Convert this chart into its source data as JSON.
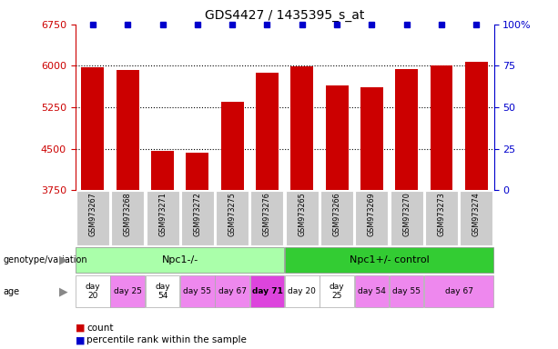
{
  "title": "GDS4427 / 1435395_s_at",
  "samples": [
    "GSM973267",
    "GSM973268",
    "GSM973271",
    "GSM973272",
    "GSM973275",
    "GSM973276",
    "GSM973265",
    "GSM973266",
    "GSM973269",
    "GSM973270",
    "GSM973273",
    "GSM973274"
  ],
  "counts": [
    5980,
    5930,
    4460,
    4430,
    5350,
    5870,
    5990,
    5640,
    5610,
    5940,
    6000,
    6080
  ],
  "percentiles": [
    100,
    100,
    100,
    100,
    100,
    100,
    100,
    100,
    100,
    100,
    100,
    100
  ],
  "ylim_left": [
    3750,
    6750
  ],
  "ylim_right": [
    0,
    100
  ],
  "yticks_left": [
    3750,
    4500,
    5250,
    6000,
    6750
  ],
  "yticks_right": [
    0,
    25,
    50,
    75,
    100
  ],
  "bar_color": "#cc0000",
  "percentile_color": "#0000cc",
  "sample_bg_color": "#cccccc",
  "genotype_groups": [
    {
      "label": "Npc1-/-",
      "start": 0,
      "end": 6,
      "color": "#aaffaa"
    },
    {
      "label": "Npc1+/- control",
      "start": 6,
      "end": 12,
      "color": "#33cc33"
    }
  ],
  "age_spans": [
    {
      "label": "day\n20",
      "start": 0,
      "end": 1,
      "color": "#ffffff",
      "bold": false
    },
    {
      "label": "day 25",
      "start": 1,
      "end": 2,
      "color": "#ee88ee",
      "bold": false
    },
    {
      "label": "day\n54",
      "start": 2,
      "end": 3,
      "color": "#ffffff",
      "bold": false
    },
    {
      "label": "day 55",
      "start": 3,
      "end": 4,
      "color": "#ee88ee",
      "bold": false
    },
    {
      "label": "day 67",
      "start": 4,
      "end": 5,
      "color": "#ee88ee",
      "bold": false
    },
    {
      "label": "day 71",
      "start": 5,
      "end": 6,
      "color": "#dd44dd",
      "bold": true
    },
    {
      "label": "day 20",
      "start": 6,
      "end": 7,
      "color": "#ffffff",
      "bold": false
    },
    {
      "label": "day\n25",
      "start": 7,
      "end": 8,
      "color": "#ffffff",
      "bold": false
    },
    {
      "label": "day 54",
      "start": 8,
      "end": 9,
      "color": "#ee88ee",
      "bold": false
    },
    {
      "label": "day 55",
      "start": 9,
      "end": 10,
      "color": "#ee88ee",
      "bold": false
    },
    {
      "label": "day 67",
      "start": 10,
      "end": 12,
      "color": "#ee88ee",
      "bold": false
    }
  ],
  "legend_items": [
    {
      "label": "count",
      "color": "#cc0000"
    },
    {
      "label": "percentile rank within the sample",
      "color": "#0000cc"
    }
  ]
}
